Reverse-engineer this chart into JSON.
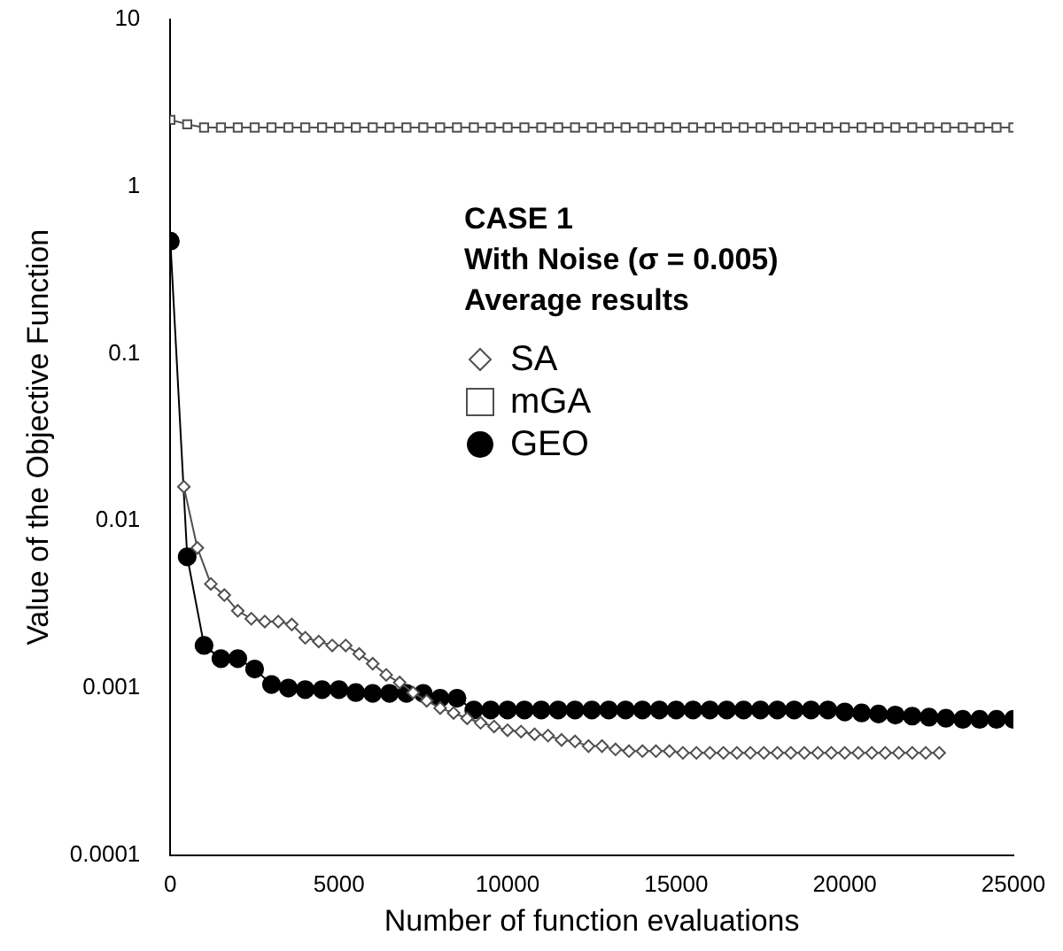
{
  "chart_data": {
    "type": "line",
    "xlabel": "Number of function evaluations",
    "ylabel": "Value of the Objective Function",
    "annotations": [
      "CASE 1",
      "With Noise (σ = 0.005)",
      "Average results"
    ],
    "log": "y",
    "grid": false,
    "legend": "top",
    "xlim": [
      0,
      25000
    ],
    "xticks": [
      0,
      5000,
      10000,
      15000,
      20000,
      25000
    ],
    "ylim": [
      0.0001,
      10
    ],
    "yticks": [
      0.0001,
      0.001,
      0.01,
      0.1,
      1,
      10
    ],
    "series": [
      {
        "name": "SA",
        "color": "#505050",
        "marker": "diamond",
        "x": [
          400,
          800,
          1200,
          1600,
          2000,
          2400,
          2800,
          3200,
          3600,
          4000,
          4400,
          4800,
          5200,
          5600,
          6000,
          6400,
          6800,
          7200,
          7600,
          8000,
          8400,
          8800,
          9200,
          9600,
          10000,
          10400,
          10800,
          11200,
          11600,
          12000,
          12400,
          12800,
          13200,
          13600,
          14000,
          14400,
          14800,
          15200,
          15600,
          16000,
          16400,
          16800,
          17200,
          17600,
          18000,
          18400,
          18800,
          19200,
          19600,
          20000,
          20400,
          20800,
          21200,
          21600,
          22000,
          22400,
          22800
        ],
        "values": [
          0.016,
          0.0069,
          0.0042,
          0.0036,
          0.0029,
          0.0026,
          0.0025,
          0.0025,
          0.0024,
          0.002,
          0.0019,
          0.0018,
          0.0018,
          0.0016,
          0.0014,
          0.0012,
          0.00108,
          0.00094,
          0.00084,
          0.00076,
          0.00071,
          0.00066,
          0.00062,
          0.00059,
          0.00056,
          0.00055,
          0.00053,
          0.00052,
          0.00049,
          0.00048,
          0.00045,
          0.00045,
          0.00043,
          0.00042,
          0.00042,
          0.00042,
          0.00042,
          0.00041,
          0.00041,
          0.00041,
          0.00041,
          0.00041,
          0.00041,
          0.00041,
          0.00041,
          0.00041,
          0.00041,
          0.00041,
          0.00041,
          0.00041,
          0.00041,
          0.00041,
          0.00041,
          0.00041,
          0.00041,
          0.00041,
          0.00041
        ]
      },
      {
        "name": "mGA",
        "color": "#505050",
        "marker": "square",
        "x": [
          0,
          500,
          1000,
          1500,
          2000,
          2500,
          3000,
          3500,
          4000,
          4500,
          5000,
          5500,
          6000,
          6500,
          7000,
          7500,
          8000,
          8500,
          9000,
          9500,
          10000,
          10500,
          11000,
          11500,
          12000,
          12500,
          13000,
          13500,
          14000,
          14500,
          15000,
          15500,
          16000,
          16500,
          17000,
          17500,
          18000,
          18500,
          19000,
          19500,
          20000,
          20500,
          21000,
          21500,
          22000,
          22500,
          23000,
          23500,
          24000,
          24500,
          25000
        ],
        "values": [
          2.5,
          2.35,
          2.25,
          2.25,
          2.25,
          2.25,
          2.25,
          2.25,
          2.25,
          2.25,
          2.25,
          2.25,
          2.25,
          2.25,
          2.25,
          2.25,
          2.25,
          2.25,
          2.25,
          2.25,
          2.25,
          2.25,
          2.25,
          2.25,
          2.25,
          2.25,
          2.25,
          2.25,
          2.25,
          2.25,
          2.25,
          2.25,
          2.25,
          2.25,
          2.25,
          2.25,
          2.25,
          2.25,
          2.25,
          2.25,
          2.25,
          2.25,
          2.25,
          2.25,
          2.25,
          2.25,
          2.25,
          2.25,
          2.25,
          2.25,
          2.25
        ]
      },
      {
        "name": "GEO",
        "color": "#000000",
        "marker": "circle",
        "x": [
          0,
          500,
          1000,
          1500,
          2000,
          2500,
          3000,
          3500,
          4000,
          4500,
          5000,
          5500,
          6000,
          6500,
          7000,
          7500,
          8000,
          8500,
          9000,
          9500,
          10000,
          10500,
          11000,
          11500,
          12000,
          12500,
          13000,
          13500,
          14000,
          14500,
          15000,
          15500,
          16000,
          16500,
          17000,
          17500,
          18000,
          18500,
          19000,
          19500,
          20000,
          20500,
          21000,
          21500,
          22000,
          22500,
          23000,
          23500,
          24000,
          24500,
          25000
        ],
        "values": [
          0.47,
          0.0061,
          0.0018,
          0.0015,
          0.0015,
          0.0013,
          0.00105,
          0.001,
          0.00098,
          0.00098,
          0.00098,
          0.00094,
          0.00093,
          0.00093,
          0.00093,
          0.00093,
          0.00087,
          0.00087,
          0.00074,
          0.00074,
          0.00074,
          0.00074,
          0.00074,
          0.00074,
          0.00074,
          0.00074,
          0.00074,
          0.00074,
          0.00074,
          0.00074,
          0.00074,
          0.00074,
          0.00074,
          0.00074,
          0.00074,
          0.00074,
          0.00074,
          0.00074,
          0.00074,
          0.00074,
          0.00072,
          0.00071,
          0.0007,
          0.00069,
          0.00068,
          0.00067,
          0.00066,
          0.00065,
          0.00065,
          0.00065,
          0.00065
        ]
      }
    ]
  }
}
